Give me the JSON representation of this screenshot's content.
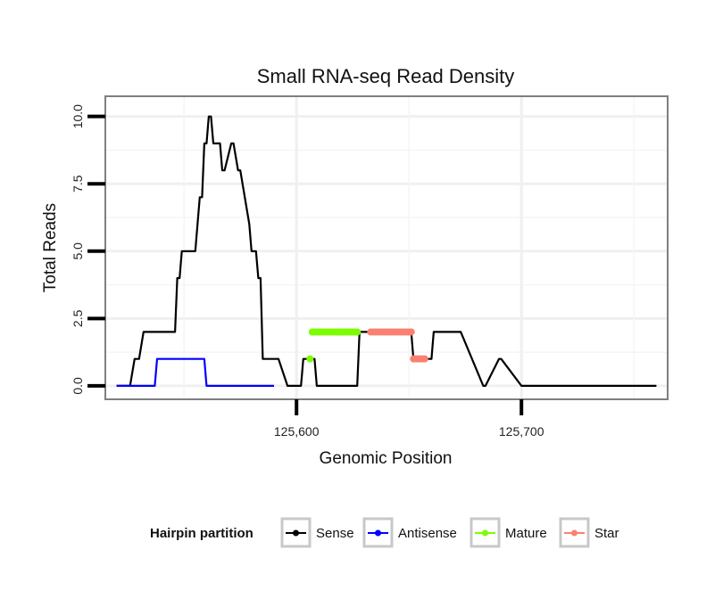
{
  "chart_data": {
    "type": "line",
    "title": "Small RNA-seq Read Density",
    "xlabel": "Genomic Position",
    "ylabel": "Total Reads",
    "xlim": [
      125515,
      125765
    ],
    "ylim": [
      -0.5,
      10.75
    ],
    "x_ticks": [
      125600,
      125700
    ],
    "x_tick_labels": [
      "125,600",
      "125,700"
    ],
    "y_ticks": [
      0,
      2.5,
      5,
      7.5,
      10
    ],
    "y_tick_labels": [
      "0.0",
      "2.5",
      "5.0",
      "7.5",
      "10.0"
    ],
    "grid": true,
    "legend": {
      "title": "Hairpin partition",
      "position": "bottom",
      "entries": [
        "Sense",
        "Antisense",
        "Mature",
        "Star"
      ]
    },
    "series": [
      {
        "name": "Sense",
        "color": "#000000",
        "style": "line",
        "x": [
          125520,
          125526,
          125528,
          125530,
          125532,
          125533,
          125534,
          125535,
          125537,
          125546,
          125547,
          125548,
          125549,
          125550,
          125552,
          125553,
          125554,
          125555,
          125557,
          125558,
          125559,
          125560,
          125561,
          125562,
          125563,
          125566,
          125567,
          125568,
          125571,
          125572,
          125574,
          125575,
          125579,
          125580,
          125581,
          125582,
          125583,
          125584,
          125585,
          125591,
          125592,
          125596,
          125597,
          125602,
          125603,
          125606,
          125607,
          125608,
          125609,
          125627,
          125628,
          125630,
          125631,
          125633,
          125634,
          125651,
          125652,
          125660,
          125661,
          125672,
          125673,
          125683,
          125684,
          125690,
          125691,
          125700,
          125760
        ],
        "y": [
          0,
          0,
          1,
          1,
          2,
          2,
          2,
          2,
          2,
          2,
          4,
          4,
          5,
          5,
          5,
          5,
          5,
          5,
          7,
          7,
          9,
          9,
          10,
          10,
          9,
          9,
          8,
          8,
          9,
          9,
          8,
          8,
          6,
          5,
          5,
          5,
          4,
          4,
          1,
          1,
          1,
          0,
          0,
          0,
          1,
          1,
          1,
          1,
          0,
          0,
          2,
          2,
          2,
          2,
          2,
          2,
          1,
          1,
          2,
          2,
          2,
          0,
          0,
          1,
          1,
          0,
          0
        ]
      },
      {
        "name": "Antisense",
        "color": "#0000ff",
        "style": "line",
        "x": [
          125520,
          125537,
          125538,
          125559,
          125560,
          125590
        ],
        "y": [
          0,
          0,
          1,
          1,
          0,
          0
        ]
      },
      {
        "name": "Mature",
        "color": "#7cfc00",
        "style": "points",
        "x": [
          125606,
          125607,
          125608,
          125609,
          125610,
          125611,
          125612,
          125613,
          125614,
          125615,
          125616,
          125617,
          125618,
          125619,
          125620,
          125621,
          125622,
          125623,
          125624,
          125625,
          125626,
          125627
        ],
        "y": [
          1,
          2,
          2,
          2,
          2,
          2,
          2,
          2,
          2,
          2,
          2,
          2,
          2,
          2,
          2,
          2,
          2,
          2,
          2,
          2,
          2,
          2
        ]
      },
      {
        "name": "Star",
        "color": "#fa8072",
        "style": "points",
        "x": [
          125633,
          125634,
          125635,
          125636,
          125637,
          125638,
          125639,
          125640,
          125641,
          125642,
          125643,
          125644,
          125645,
          125646,
          125647,
          125648,
          125649,
          125650,
          125651,
          125652,
          125653,
          125654,
          125655,
          125656,
          125657
        ],
        "y": [
          2,
          2,
          2,
          2,
          2,
          2,
          2,
          2,
          2,
          2,
          2,
          2,
          2,
          2,
          2,
          2,
          2,
          2,
          2,
          1,
          1,
          1,
          1,
          1,
          1
        ]
      }
    ]
  }
}
